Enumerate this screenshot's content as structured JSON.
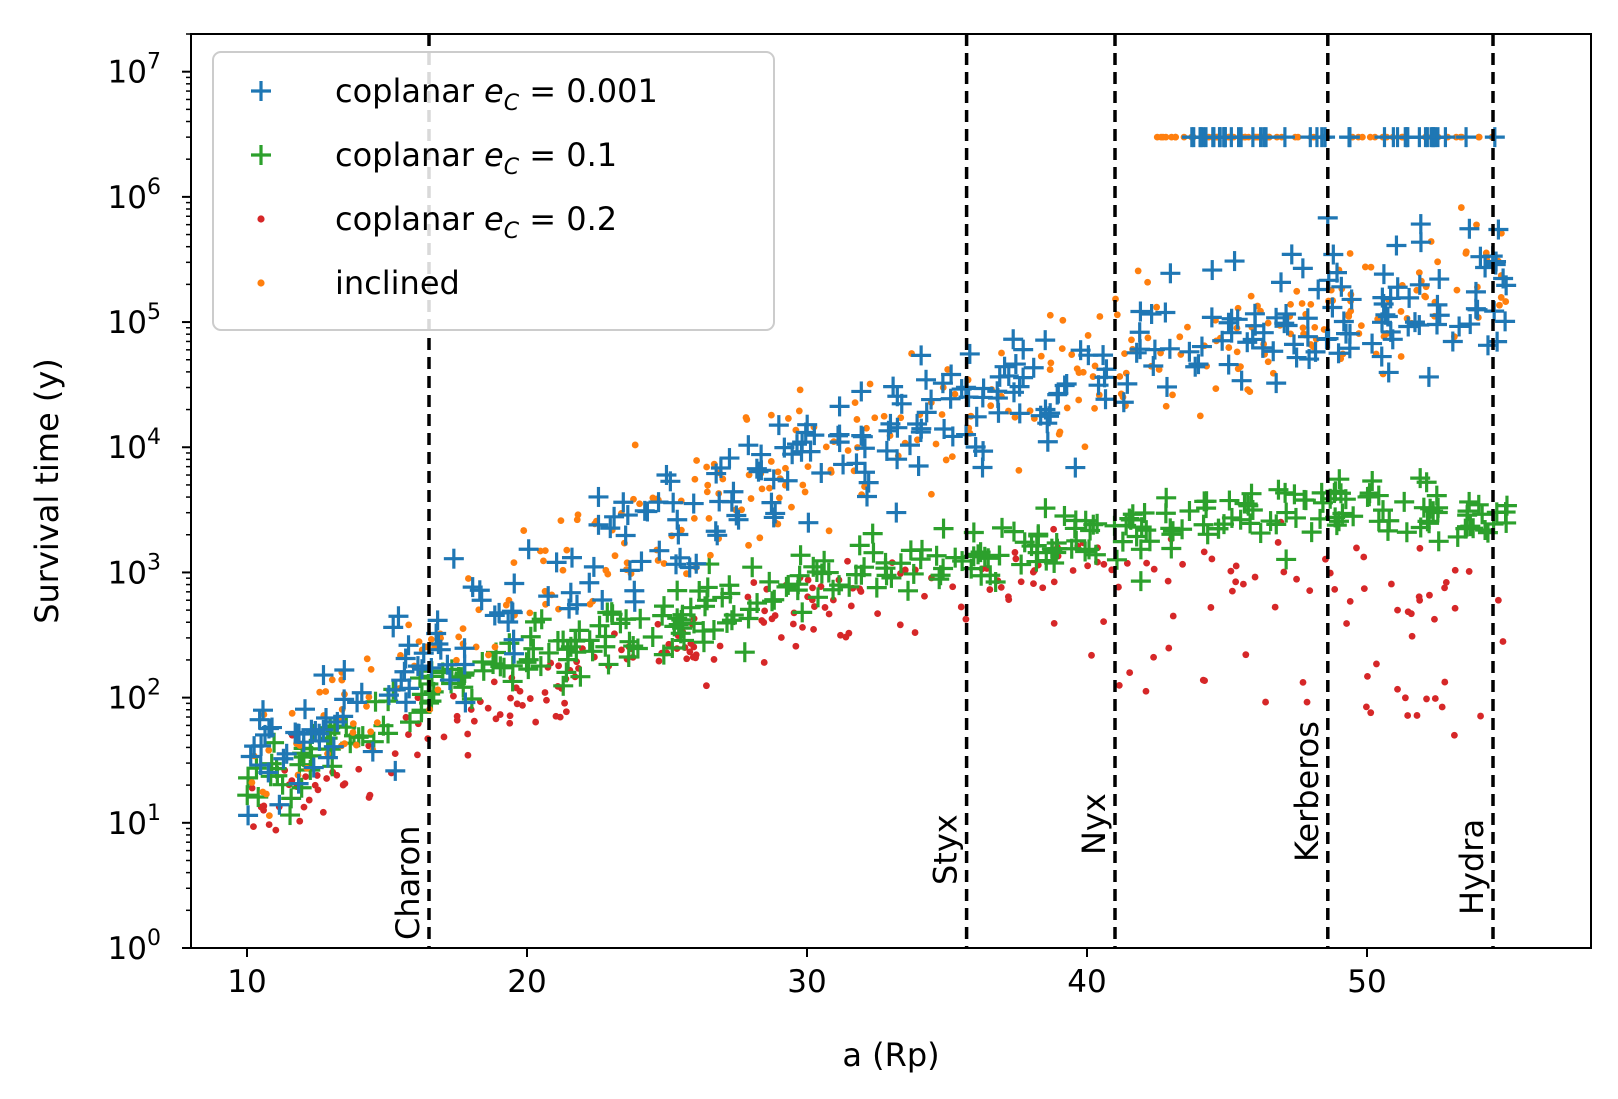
{
  "chart_data": {
    "type": "scatter",
    "yscale": "log",
    "xlabel": "a (Rp)",
    "ylabel": "Survival time (y)",
    "xlim": [
      8,
      58
    ],
    "ylim": [
      1,
      20000000
    ],
    "xticks": [
      10,
      20,
      30,
      40,
      50
    ],
    "yticks": [
      1,
      10,
      100,
      1000,
      10000,
      100000,
      1000000,
      10000000
    ],
    "ytick_base": "10",
    "ytick_exponents": [
      "0",
      "1",
      "2",
      "3",
      "4",
      "5",
      "6",
      "7"
    ],
    "legend_location": "upper left",
    "series": [
      {
        "name": "coplanar",
        "math_label": "e_C = 0.001",
        "label_var": "e",
        "label_sub": "C",
        "label_rest": " = 0.001",
        "marker": "plus",
        "color": "#1f77b4",
        "survivor_band": [
          43.5,
          55
        ]
      },
      {
        "name": "coplanar",
        "math_label": "e_C = 0.1",
        "label_var": "e",
        "label_sub": "C",
        "label_rest": " = 0.1",
        "marker": "plus",
        "color": "#2ca02c"
      },
      {
        "name": "coplanar",
        "math_label": "e_C = 0.2",
        "label_var": "e",
        "label_sub": "C",
        "label_rest": " = 0.2",
        "marker": "dot",
        "color": "#d62728"
      },
      {
        "name": "inclined",
        "marker": "dot",
        "color": "#ff7f0e",
        "survivor_band": [
          42.5,
          55
        ]
      }
    ],
    "moons": [
      {
        "name": "Charon",
        "a": 16.5
      },
      {
        "name": "Styx",
        "a": 35.7
      },
      {
        "name": "Nyx",
        "a": 41.0
      },
      {
        "name": "Kerberos",
        "a": 48.6
      },
      {
        "name": "Hydra",
        "a": 54.5
      }
    ],
    "survivor_time": 3000000,
    "trend_points": {
      "coplanar_e0.001": [
        [
          10,
          25
        ],
        [
          20,
          700
        ],
        [
          30,
          8000
        ],
        [
          40,
          40000
        ],
        [
          50,
          150000
        ],
        [
          55,
          200000
        ]
      ],
      "coplanar_e0.1": [
        [
          10,
          18
        ],
        [
          16,
          100
        ],
        [
          20,
          200
        ],
        [
          30,
          800
        ],
        [
          40,
          2000
        ],
        [
          50,
          3500
        ],
        [
          55,
          2500
        ]
      ],
      "coplanar_e0.2": [
        [
          10,
          11
        ],
        [
          16,
          50
        ],
        [
          20,
          110
        ],
        [
          30,
          550
        ],
        [
          40,
          1000
        ],
        [
          50,
          800
        ],
        [
          55,
          500
        ]
      ],
      "inclined": [
        [
          10,
          30
        ],
        [
          20,
          700
        ],
        [
          30,
          8000
        ],
        [
          40,
          40000
        ],
        [
          50,
          150000
        ],
        [
          55,
          200000
        ]
      ]
    }
  }
}
